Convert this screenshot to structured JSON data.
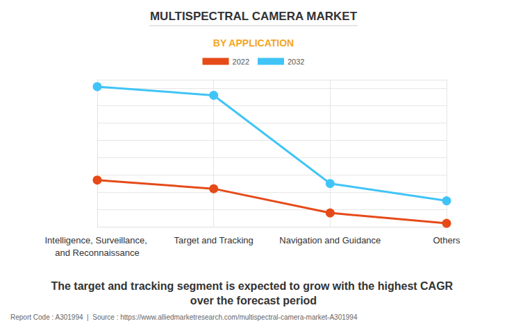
{
  "chart_data": {
    "type": "line",
    "title": "MULTISPECTRAL CAMERA MARKET",
    "subtitle": "BY APPLICATION",
    "annotation": "The target and tracking segment is expected to grow with the highest CAGR over the forecast period",
    "source": "Report Code : A301994  |  Source : https://www.alliedmarketresearch.com/multispectral-camera-market-A301994",
    "categories": [
      "Intelligence, Surveillance, and Reconnaissance",
      "Target and Tracking",
      "Navigation and Guidance",
      "Others"
    ],
    "series": [
      {
        "name": "2022",
        "color": "#e64a19",
        "values": [
          2.7,
          2.2,
          0.8,
          0.2
        ]
      },
      {
        "name": "2032",
        "color": "#40c4f7",
        "values": [
          8.1,
          7.6,
          2.5,
          1.5
        ]
      }
    ],
    "ylim": [
      0,
      8.5
    ],
    "yticks": [
      0,
      1,
      2,
      3,
      4,
      5,
      6,
      7,
      8
    ],
    "grid": true,
    "tick_labels": "x",
    "legend": "top",
    "marker": "circle"
  }
}
